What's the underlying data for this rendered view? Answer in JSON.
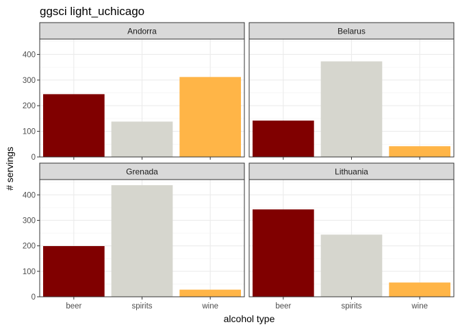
{
  "chart_data": {
    "type": "bar",
    "title": "ggsci light_uchicago",
    "xlabel": "alcohol type",
    "ylabel": "# servings",
    "categories": [
      "beer",
      "spirits",
      "wine"
    ],
    "category_colors": [
      "#800000",
      "#D6D6CE",
      "#FFB547"
    ],
    "ylim": [
      0,
      460
    ],
    "yticks": [
      0,
      100,
      200,
      300,
      400
    ],
    "grid": true,
    "theme": {
      "panel_border": "#333333",
      "strip_fill": "#D9D9D9",
      "grid_major": "#EBEBEB",
      "grid_minor": "#F2F2F2"
    },
    "panels": [
      {
        "name": "Andorra",
        "values": [
          245,
          138,
          312
        ]
      },
      {
        "name": "Belarus",
        "values": [
          142,
          373,
          42
        ]
      },
      {
        "name": "Grenada",
        "values": [
          199,
          438,
          28
        ]
      },
      {
        "name": "Lithuania",
        "values": [
          343,
          244,
          56
        ]
      }
    ]
  }
}
